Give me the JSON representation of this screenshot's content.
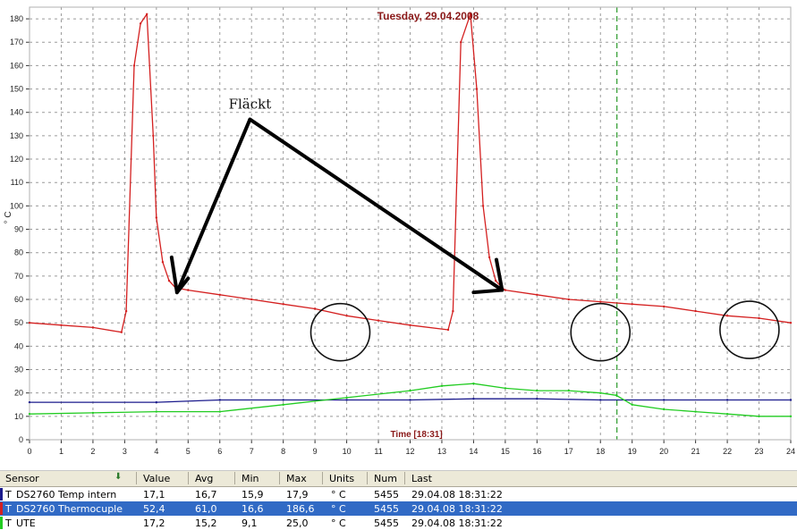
{
  "chart_data": {
    "type": "line",
    "title": "Tuesday, 29.04.2008",
    "xlabel": "Time [18:31]",
    "ylabel": "° C",
    "xlim": [
      0,
      24
    ],
    "ylim": [
      0,
      185
    ],
    "x_ticks": [
      "0",
      "1",
      "2",
      "3",
      "4",
      "5",
      "6",
      "7",
      "8",
      "9",
      "10",
      "11",
      "12",
      "13",
      "14",
      "15",
      "16",
      "17",
      "18",
      "19",
      "20",
      "21",
      "22",
      "23",
      "24"
    ],
    "y_ticks": [
      "0",
      "10",
      "20",
      "30",
      "40",
      "50",
      "60",
      "70",
      "80",
      "90",
      "100",
      "110",
      "120",
      "130",
      "140",
      "150",
      "160",
      "170",
      "180"
    ],
    "grid": true,
    "current_time_marker": 18.52,
    "annotation": "Fläckt",
    "series": [
      {
        "name": "DS2760 Thermocuple",
        "color": "#d42020",
        "x": [
          0,
          1,
          2,
          2.9,
          3.05,
          3.3,
          3.5,
          3.7,
          3.9,
          4.0,
          4.2,
          4.4,
          4.6,
          5,
          6,
          7,
          8,
          9,
          10,
          11,
          12,
          13.2,
          13.35,
          13.6,
          13.9,
          14.1,
          14.3,
          14.5,
          14.7,
          14.9,
          15,
          16,
          17,
          18,
          19,
          20,
          21,
          22,
          23,
          24
        ],
        "y": [
          50,
          49,
          48,
          46,
          55,
          160,
          178,
          182,
          130,
          95,
          76,
          68,
          65,
          64,
          62,
          60,
          58,
          56,
          53,
          51,
          49,
          47,
          55,
          170,
          182,
          150,
          100,
          78,
          68,
          65,
          64,
          62,
          60,
          59,
          58,
          57,
          55,
          53,
          52,
          50
        ]
      },
      {
        "name": "UTE",
        "color": "#22cc22",
        "x": [
          0,
          2,
          4,
          6,
          8,
          10,
          12,
          13,
          14,
          15,
          16,
          17,
          18,
          18.5,
          19,
          20,
          21,
          22,
          23,
          24
        ],
        "y": [
          11,
          11.5,
          12,
          12,
          15,
          18,
          21,
          23,
          24,
          22,
          21,
          21,
          20,
          19,
          15,
          13,
          12,
          11,
          10,
          10
        ]
      },
      {
        "name": "DS2760 Temp intern",
        "color": "#1a1a8c",
        "x": [
          0,
          4,
          6,
          8,
          10,
          12,
          14,
          16,
          18,
          20,
          22,
          24
        ],
        "y": [
          16,
          16,
          17,
          17,
          17,
          17,
          17.5,
          17.5,
          17,
          17,
          17,
          17
        ]
      }
    ]
  },
  "sensor_table": {
    "columns": [
      "Sensor",
      "Value",
      "Avg",
      "Min",
      "Max",
      "Units",
      "Num",
      "Last"
    ],
    "rows": [
      {
        "type": "T",
        "sensor": "DS2760 Temp intern",
        "value": "17,1",
        "avg": "16,7",
        "min": "15,9",
        "max": "17,9",
        "units": "° C",
        "num": "5455",
        "last": "29.04.08 18:31:22",
        "color": "#1a1a8c"
      },
      {
        "type": "T",
        "sensor": "DS2760 Thermocuple",
        "value": "52,4",
        "avg": "61,0",
        "min": "16,6",
        "max": "186,6",
        "units": "° C",
        "num": "5455",
        "last": "29.04.08 18:31:22",
        "color": "#d42020"
      },
      {
        "type": "T",
        "sensor": "UTE",
        "value": "17,2",
        "avg": "15,2",
        "min": "9,1",
        "max": "25,0",
        "units": "° C",
        "num": "5455",
        "last": "29.04.08 18:31:22",
        "color": "#22cc22"
      }
    ]
  }
}
